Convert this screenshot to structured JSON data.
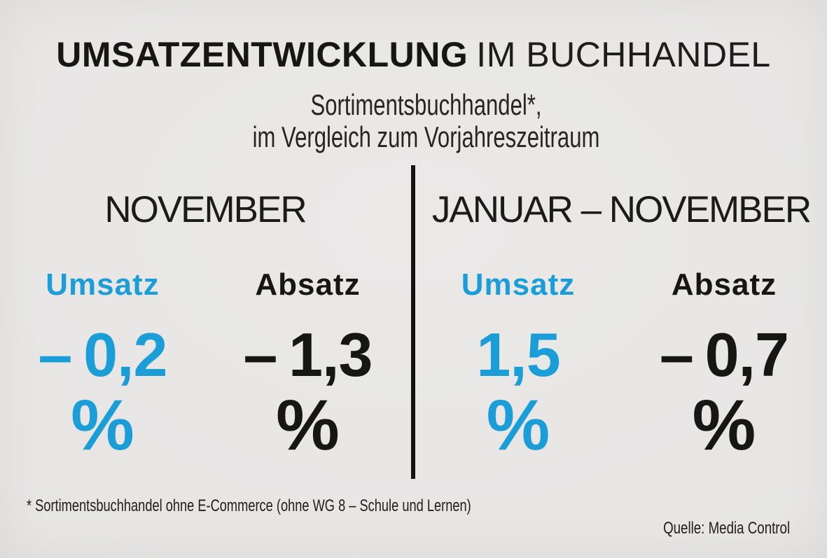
{
  "colors": {
    "background": "#e6e5e4",
    "accent_blue": "#1b9dd8",
    "text_black": "#161615",
    "divider": "#121212"
  },
  "header": {
    "title_strong": "UMSATZENTWICKLUNG",
    "title_light": "IM BUCHHANDEL",
    "subtitle_line1": "Sortimentsbuchhandel*,",
    "subtitle_line2": "im Vergleich zum Vorjahreszeitraum"
  },
  "chart_data": {
    "type": "table",
    "title": "Umsatzentwicklung im Buchhandel",
    "subtitle": "Sortimentsbuchhandel, im Vergleich zum Vorjahreszeitraum",
    "unit": "%",
    "legend": [
      "Umsatz",
      "Absatz"
    ],
    "groups": [
      {
        "period": "NOVEMBER",
        "metrics": [
          {
            "label": "Umsatz",
            "value": -0.2,
            "display": "– 0,2",
            "unit": "%",
            "color": "#1b9dd8"
          },
          {
            "label": "Absatz",
            "value": -1.3,
            "display": "– 1,3",
            "unit": "%",
            "color": "#161615"
          }
        ]
      },
      {
        "period": "JANUAR – NOVEMBER",
        "metrics": [
          {
            "label": "Umsatz",
            "value": 1.5,
            "display": "1,5",
            "unit": "%",
            "color": "#1b9dd8"
          },
          {
            "label": "Absatz",
            "value": -0.7,
            "display": "– 0,7",
            "unit": "%",
            "color": "#161615"
          }
        ]
      }
    ]
  },
  "footer": {
    "footnote": "* Sortimentsbuchhandel ohne E-Commerce (ohne WG 8 – Schule und Lernen)",
    "source": "Quelle: Media Control"
  }
}
